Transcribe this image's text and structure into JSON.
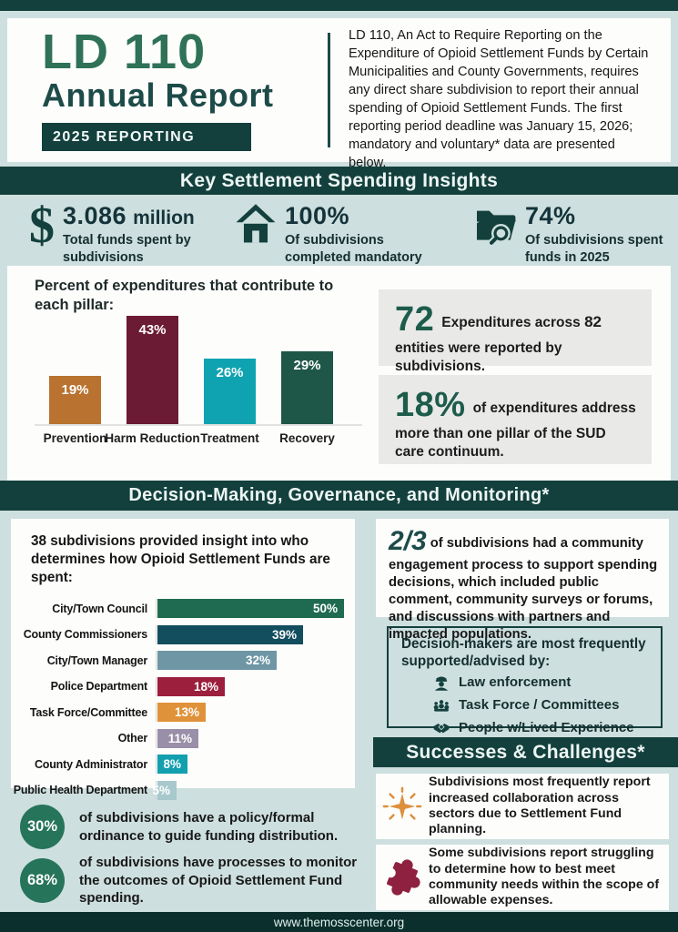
{
  "header": {
    "title_line1": "LD 110",
    "title_line2": "Annual Report",
    "badge": "2025 REPORTING",
    "intro": "LD 110, An Act to Require Reporting on the Expenditure of Opioid Settlement Funds by Certain Municipalities and County Governments, requires any direct share subdivision to report their annual spending of Opioid Settlement Funds. The first reporting period deadline was January 15, 2026; mandatory and voluntary* data are presented below."
  },
  "banners": {
    "insights": "Key Settlement Spending Insights",
    "governance": "Decision-Making, Governance, and Monitoring*",
    "successes": "Successes & Challenges*"
  },
  "stats": [
    {
      "icon": "dollar-icon",
      "value": "3.086",
      "unit": "million",
      "label": "Total funds spent by subdivisions"
    },
    {
      "icon": "house-icon",
      "value": "100%",
      "unit": "",
      "label": "Of subdivisions completed mandatory reporting"
    },
    {
      "icon": "folder-search-icon",
      "value": "74%",
      "unit": "",
      "label": "Of subdivisions spent funds in 2025"
    }
  ],
  "facts": [
    {
      "big": "72",
      "prefix": "Expenditures across ",
      "strong": "82",
      "suffix": " entities were reported by subdivisions."
    },
    {
      "big": "18%",
      "text": "of expenditures address more than one pillar of the SUD care continuum."
    }
  ],
  "governance": {
    "two_thirds_value": "2/3",
    "two_thirds_text": "of subdivisions had a community engagement process to support spending decisions, which included public comment, community surveys or forums, and discussions with partners and impacted populations.",
    "advisors_title": "Decision-makers are most frequently supported/advised by:",
    "advisors": [
      {
        "icon": "police-officer-icon",
        "label": "Law enforcement"
      },
      {
        "icon": "meeting-icon",
        "label": "Task Force / Committees"
      },
      {
        "icon": "handshake-icon",
        "label": "People w/Lived Experience"
      }
    ],
    "policy_stats": [
      {
        "value": "30%",
        "text": "of subdivisions have a policy/formal ordinance to guide funding distribution."
      },
      {
        "value": "68%",
        "text": "of subdivisions have processes to monitor the outcomes of Opioid Settlement Fund spending."
      }
    ]
  },
  "successes": [
    {
      "icon": "starburst-icon",
      "color": "#dd8f3d",
      "text": "Subdivisions most frequently report increased collaboration across sectors due to Settlement Fund planning."
    },
    {
      "icon": "puzzle-icon",
      "color": "#8e2040",
      "text": "Some subdivisions report struggling to determine how to best meet community needs within the scope of allowable expenses."
    }
  ],
  "footer": {
    "url": "www.themosscenter.org"
  },
  "chart_data": [
    {
      "type": "bar",
      "orientation": "vertical",
      "title": "Percent of expenditures that contribute to each pillar:",
      "categories": [
        "Prevention",
        "Harm Reduction",
        "Treatment",
        "Recovery"
      ],
      "values": [
        19,
        43,
        26,
        29
      ],
      "value_labels": [
        "19%",
        "43%",
        "26%",
        "29%"
      ],
      "colors": [
        "#b9722f",
        "#6b1b33",
        "#0fa3b1",
        "#1e5748"
      ],
      "ylim": [
        0,
        45
      ],
      "unit": "%"
    },
    {
      "type": "bar",
      "orientation": "horizontal",
      "title": "38 subdivisions provided insight into who determines how Opioid Settlement Funds are spent:",
      "categories": [
        "City/Town Council",
        "County Commissioners",
        "City/Town Manager",
        "Police Department",
        "Task Force/Committee",
        "Other",
        "County Administrator",
        "Public Health Department"
      ],
      "values": [
        50,
        39,
        32,
        18,
        13,
        11,
        8,
        5
      ],
      "value_labels": [
        "50%",
        "39%",
        "32%",
        "18%",
        "13%",
        "11%",
        "8%",
        "5%"
      ],
      "colors": [
        "#1e6b51",
        "#134e5e",
        "#6e96a4",
        "#9c1f3d",
        "#e0923a",
        "#9a8fa8",
        "#129fae",
        "#a7c9cd"
      ],
      "xlim": [
        0,
        50
      ],
      "unit": "%"
    }
  ]
}
